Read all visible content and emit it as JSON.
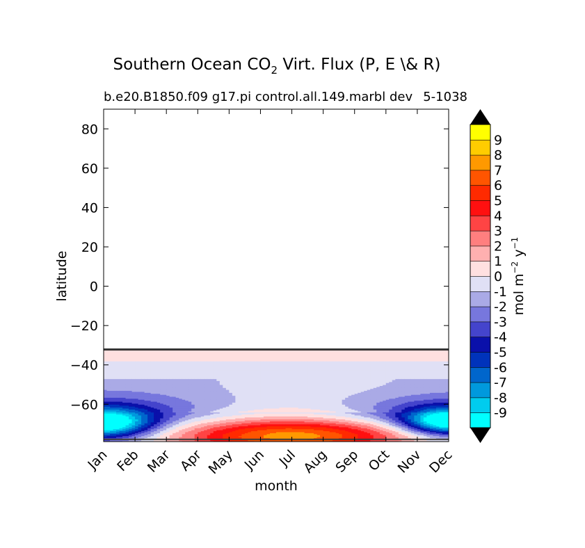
{
  "chart_data": {
    "type": "heatmap",
    "title_main": "Southern Ocean CO",
    "title_sub": "2",
    "title_rest": " Virt. Flux (P, E \\& R)",
    "subtitle": "b.e20.B1850.f09 g17.pi control.all.149.marbl dev",
    "subtitle_right": "5-1038",
    "xlabel": "month",
    "ylabel": "latitude",
    "x_ticks": [
      "Jan",
      "Feb",
      "Mar",
      "Apr",
      "May",
      "Jun",
      "Jul",
      "Aug",
      "Sep",
      "Oct",
      "Nov",
      "Dec"
    ],
    "y_ticks": [
      80,
      60,
      40,
      20,
      0,
      -20,
      -40,
      -60
    ],
    "y_tick_labels": [
      "80",
      "60",
      "40",
      "20",
      "0",
      "−20",
      "−40",
      "−60"
    ],
    "ylim": [
      -79,
      90
    ],
    "data_lat_max": -32,
    "colorbar": {
      "label_main": "mol m",
      "label_exp1": "−2",
      "label_mid": " y",
      "label_exp2": "−1",
      "levels": [
        "-9",
        "-8",
        "-7",
        "-6",
        "-5",
        "-4",
        "-3",
        "-2",
        "-1",
        "0",
        "1",
        "2",
        "3",
        "4",
        "5",
        "6",
        "7",
        "8",
        "9"
      ],
      "colors": [
        "#00ffff",
        "#00ccee",
        "#0099dd",
        "#0066cc",
        "#0033bb",
        "#0a10aa",
        "#4444cc",
        "#7777dd",
        "#aaaae6",
        "#e0e0f5",
        "#ffe0e0",
        "#ffb0b0",
        "#ff7f7f",
        "#ff4444",
        "#ff1010",
        "#ff2a00",
        "#ff5500",
        "#ff9900",
        "#ffcc00",
        "#ffff00"
      ],
      "extend_low_color": "#000000",
      "extend_high_color": "#000000"
    },
    "approx_zonal_mean_by_month": {
      "lat": [
        -78,
        -74,
        -70,
        -66,
        -62,
        -58,
        -54,
        -50,
        -46,
        -42,
        -38,
        -34
      ],
      "Jan": [
        -9,
        -8,
        -5,
        -3,
        -2,
        -2,
        -2,
        -2,
        -1,
        -1,
        0.5,
        0.5
      ],
      "Jul": [
        4,
        3,
        2,
        1,
        -1,
        -1,
        -1,
        -1,
        -1,
        -1,
        0.5,
        0.5
      ],
      "Dec": [
        -8,
        -7,
        -5,
        -3,
        -2,
        -2,
        -1,
        -1,
        -1,
        -1,
        0.5,
        0.5
      ]
    }
  }
}
